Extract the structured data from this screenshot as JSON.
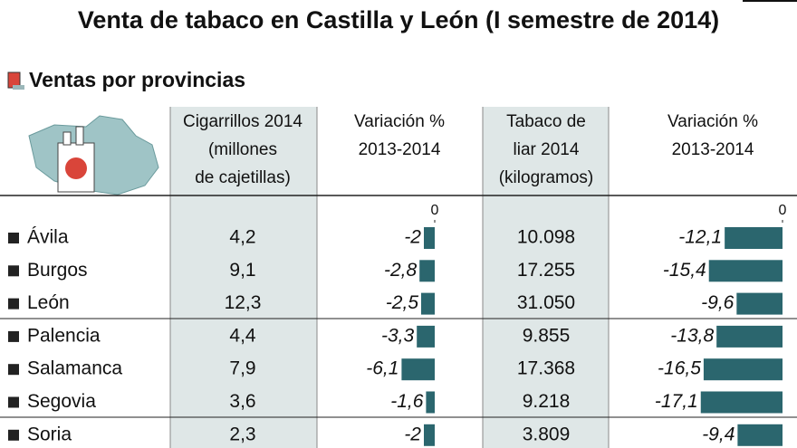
{
  "title": "Venta de tabaco en Castilla y León (I semestre de 2014)",
  "section": "Ventas por provincias",
  "provinces": [
    "Ávila",
    "Burgos",
    "León",
    "Palencia",
    "Salamanca",
    "Segovia",
    "Soria"
  ],
  "columns": [
    {
      "header": [
        "Cigarrillos 2014",
        "(millones",
        "de cajetillas)"
      ],
      "cells": [
        "4,2",
        "9,1",
        "12,3",
        "4,4",
        "7,9",
        "3,6",
        "2,3"
      ]
    },
    {
      "header": [
        "Variación %",
        "2013-2014"
      ],
      "type": "bar",
      "color": "#2b666e",
      "xlim": [
        -7,
        0
      ],
      "xticks": [
        0
      ],
      "values": [
        -2,
        -2.8,
        -2.5,
        -3.3,
        -6.1,
        -1.6,
        -2
      ],
      "value_labels": [
        "-2",
        "-2,8",
        "-2,5",
        "-3,3",
        "-6,1",
        "-1,6",
        "-2"
      ]
    },
    {
      "header": [
        "Tabaco de",
        "liar 2014",
        "(kilogramos)"
      ],
      "cells": [
        "10.098",
        "17.255",
        "31.050",
        "9.855",
        "17.368",
        "9.218",
        "3.809"
      ]
    },
    {
      "header": [
        "Variación %",
        "2013-2014"
      ],
      "type": "bar",
      "color": "#2b666e",
      "xlim": [
        -18,
        0
      ],
      "xticks": [
        0
      ],
      "values": [
        -12.1,
        -15.4,
        -9.6,
        -13.8,
        -16.5,
        -17.1,
        -9.4
      ],
      "value_labels": [
        "-12,1",
        "-15,4",
        "-9,6",
        "-13,8",
        "-16,5",
        "-17,1",
        "-9,4"
      ]
    }
  ]
}
